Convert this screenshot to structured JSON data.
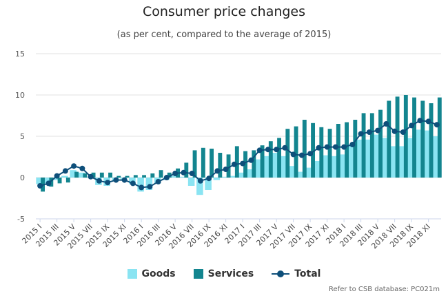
{
  "chart_data": {
    "type": "bar",
    "title": "Consumer price changes",
    "subtitle": "(as per cent, compared to the average of 2015)",
    "ylim": [
      -5,
      15
    ],
    "yticks": [
      -5,
      0,
      5,
      10,
      15
    ],
    "grid": true,
    "legend_placement": "bottom-center",
    "categories": [
      "2015 I",
      "2015 II",
      "2015 III",
      "2015 IV",
      "2015 V",
      "2015 VI",
      "2015 VII",
      "2015 VIII",
      "2015 IX",
      "2015 X",
      "2015 XI",
      "2015 XII",
      "2016 I",
      "2016 II",
      "2016 III",
      "2016 IV",
      "2016 V",
      "2016 VI",
      "2016 VII",
      "2016 VIII",
      "2016 IX",
      "2016 X",
      "2016 XI",
      "2016 XII",
      "2017 I",
      "2017 II",
      "2017 III",
      "2017 IV",
      "2017 V",
      "2017 VI",
      "2017 VII",
      "2017 VIII",
      "2017 IX",
      "2017 X",
      "2017 XI",
      "2017 XII",
      "2018 I",
      "2018 II",
      "2018 III",
      "2018 IV",
      "2018 V",
      "2018 VI",
      "2018 VII",
      "2018 VIII",
      "2018 IX",
      "2018 X",
      "2018 XI",
      "2018 XII"
    ],
    "x_tick_labels": [
      "2015 I",
      "2015 III",
      "2015 V",
      "2015 VII",
      "2015 IX",
      "2015 XI",
      "2016 I",
      "2016 III",
      "2016 V",
      "2016 VII",
      "2016 IX",
      "2016 XI",
      "2017 I",
      "2017 III",
      "2017 V",
      "2017 VII",
      "2017 IX",
      "2017 XI",
      "2018 I",
      "2018 III",
      "2018 V",
      "2018 VII",
      "2018 IX",
      "2018 XI"
    ],
    "series": [
      {
        "name": "Goods",
        "type": "bar",
        "color": "#8ae4f2",
        "values": [
          -0.8,
          -0.7,
          -0.3,
          0.2,
          0.9,
          0.6,
          0.1,
          -0.9,
          -1.0,
          -0.4,
          -0.3,
          -0.8,
          -1.7,
          -1.5,
          -0.7,
          -0.3,
          0.2,
          0.1,
          -1.0,
          -2.1,
          -1.5,
          -0.3,
          0.1,
          0.2,
          0.6,
          1.0,
          2.2,
          2.6,
          3.0,
          2.6,
          1.4,
          0.7,
          1.2,
          2.0,
          2.7,
          2.6,
          2.8,
          4.0,
          4.6,
          4.6,
          5.2,
          4.8,
          3.8,
          3.8,
          4.8,
          5.8,
          5.7,
          5.0
        ]
      },
      {
        "name": "Services",
        "type": "bar",
        "color": "#13858f",
        "values": [
          -1.7,
          -1.1,
          -0.7,
          -0.6,
          0.7,
          0.5,
          0.6,
          0.6,
          0.6,
          0.2,
          0.2,
          0.3,
          0.3,
          0.5,
          0.9,
          0.6,
          1.1,
          1.8,
          3.3,
          3.6,
          3.5,
          3.0,
          2.8,
          3.8,
          3.2,
          3.3,
          3.9,
          4.4,
          4.8,
          5.9,
          6.2,
          7.0,
          6.6,
          6.1,
          5.9,
          6.5,
          6.7,
          7.0,
          7.8,
          7.8,
          8.2,
          9.3,
          9.8,
          10.0,
          9.7,
          9.3,
          9.0,
          9.7
        ]
      },
      {
        "name": "Total",
        "type": "line",
        "color": "#0e4f7a",
        "values": [
          -1.0,
          -0.7,
          0.2,
          0.8,
          1.4,
          1.1,
          0.1,
          -0.4,
          -0.6,
          -0.3,
          -0.3,
          -0.7,
          -1.2,
          -1.1,
          -0.5,
          0.0,
          0.5,
          0.6,
          0.5,
          -0.4,
          -0.1,
          0.8,
          1.0,
          1.6,
          1.7,
          2.1,
          3.3,
          3.4,
          3.4,
          3.6,
          2.8,
          2.7,
          2.9,
          3.6,
          3.7,
          3.7,
          3.7,
          4.0,
          5.3,
          5.5,
          5.7,
          6.5,
          5.6,
          5.5,
          6.3,
          6.9,
          6.8,
          6.4
        ]
      }
    ]
  },
  "credit": "Refer to CSB database: PC021m"
}
